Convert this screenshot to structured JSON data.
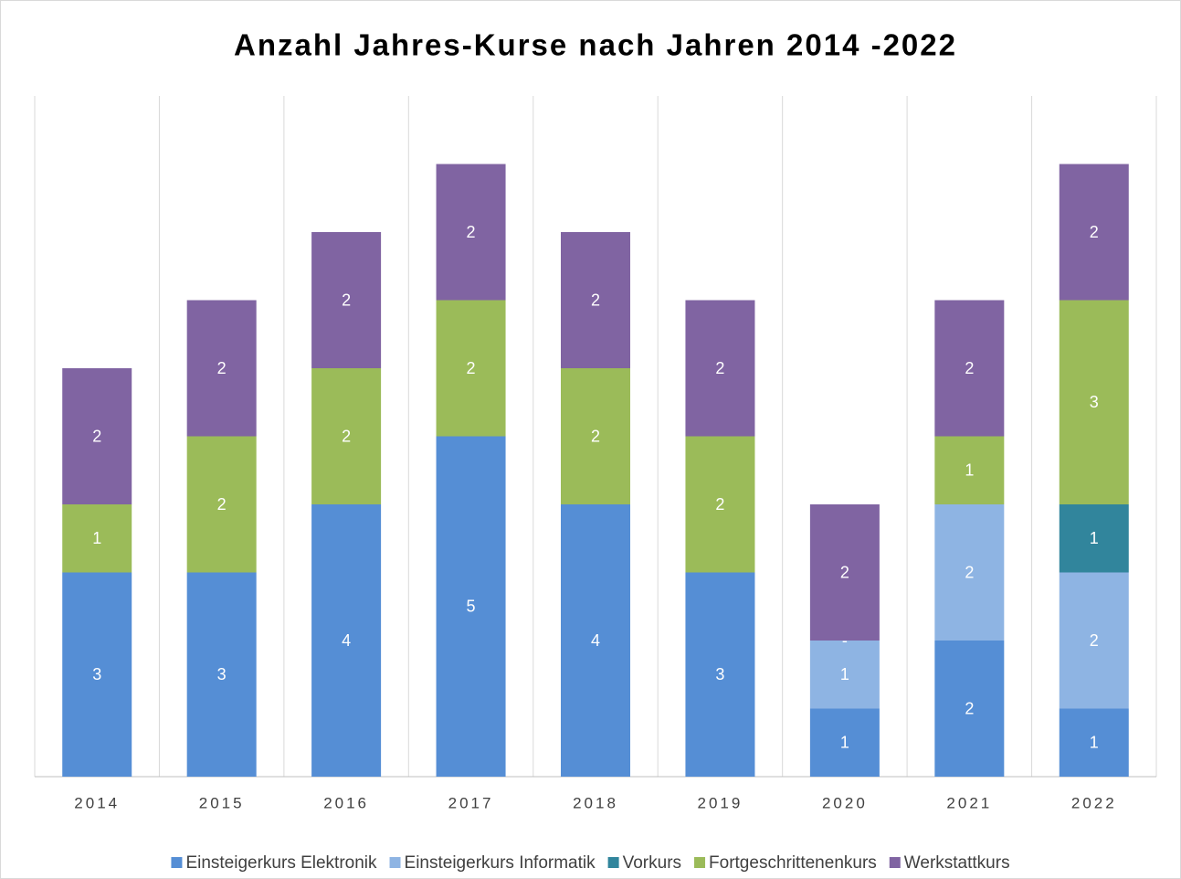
{
  "chart_data": {
    "type": "stacked_bar",
    "title": "Anzahl Jahres-Kurse nach Jahren 2014 -2022",
    "categories": [
      "2014",
      "2015",
      "2016",
      "2017",
      "2018",
      "2019",
      "2020",
      "2021",
      "2022"
    ],
    "series": [
      {
        "name": "Einsteigerkurs Elektronik",
        "color": "#558ed5",
        "values": [
          3,
          3,
          4,
          5,
          4,
          3,
          1,
          2,
          1
        ]
      },
      {
        "name": "Einsteigerkurs Informatik",
        "color": "#8eb4e3",
        "values": [
          null,
          null,
          null,
          null,
          null,
          null,
          1,
          2,
          2
        ]
      },
      {
        "name": "Vorkurs",
        "color": "#31859c",
        "values": [
          null,
          null,
          null,
          null,
          null,
          null,
          null,
          null,
          1
        ]
      },
      {
        "name": "Fortgeschrittenenkurs",
        "color": "#9bbb59",
        "values": [
          1,
          2,
          2,
          2,
          2,
          2,
          0,
          1,
          3
        ],
        "value_labels": [
          null,
          null,
          null,
          null,
          null,
          null,
          "-",
          null,
          null
        ]
      },
      {
        "name": "Werkstattkurs",
        "color": "#8064a2",
        "values": [
          2,
          2,
          2,
          2,
          2,
          2,
          2,
          2,
          2
        ]
      }
    ],
    "ylim": [
      0,
      10
    ],
    "legend": "bottom",
    "grid": "vertical"
  }
}
